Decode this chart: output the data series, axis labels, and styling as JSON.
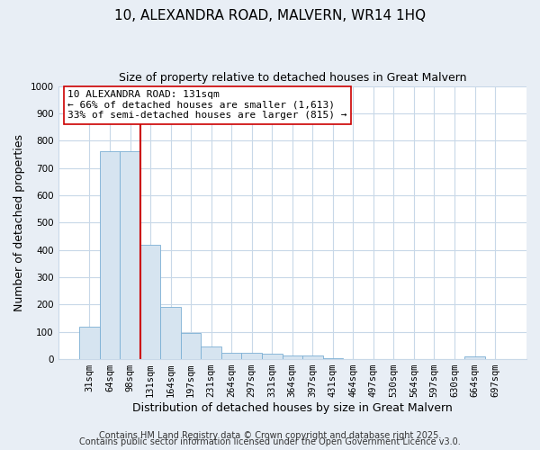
{
  "title": "10, ALEXANDRA ROAD, MALVERN, WR14 1HQ",
  "subtitle": "Size of property relative to detached houses in Great Malvern",
  "xlabel": "Distribution of detached houses by size in Great Malvern",
  "ylabel": "Number of detached properties",
  "categories": [
    "31sqm",
    "64sqm",
    "98sqm",
    "131sqm",
    "164sqm",
    "197sqm",
    "231sqm",
    "264sqm",
    "297sqm",
    "331sqm",
    "364sqm",
    "397sqm",
    "431sqm",
    "464sqm",
    "497sqm",
    "530sqm",
    "564sqm",
    "597sqm",
    "630sqm",
    "664sqm",
    "697sqm"
  ],
  "values": [
    118,
    760,
    760,
    420,
    190,
    97,
    45,
    22,
    22,
    20,
    12,
    12,
    5,
    0,
    0,
    0,
    0,
    0,
    0,
    10,
    0
  ],
  "bar_color": "#d6e4f0",
  "bar_edgecolor": "#7bafd4",
  "highlight_line_color": "#cc0000",
  "highlight_line_index": 3,
  "annotation_line1": "10 ALEXANDRA ROAD: 131sqm",
  "annotation_line2": "← 66% of detached houses are smaller (1,613)",
  "annotation_line3": "33% of semi-detached houses are larger (815) →",
  "annotation_box_color": "#ffffff",
  "annotation_box_edgecolor": "#cc0000",
  "ylim": [
    0,
    1000
  ],
  "yticks": [
    0,
    100,
    200,
    300,
    400,
    500,
    600,
    700,
    800,
    900,
    1000
  ],
  "footer1": "Contains HM Land Registry data © Crown copyright and database right 2025.",
  "footer2": "Contains public sector information licensed under the Open Government Licence v3.0.",
  "fig_bg_color": "#e8eef5",
  "plot_bg_color": "#ffffff",
  "grid_color": "#c8d8e8",
  "title_fontsize": 11,
  "subtitle_fontsize": 9,
  "axis_label_fontsize": 9,
  "tick_fontsize": 7.5,
  "footer_fontsize": 7,
  "annot_fontsize": 8
}
